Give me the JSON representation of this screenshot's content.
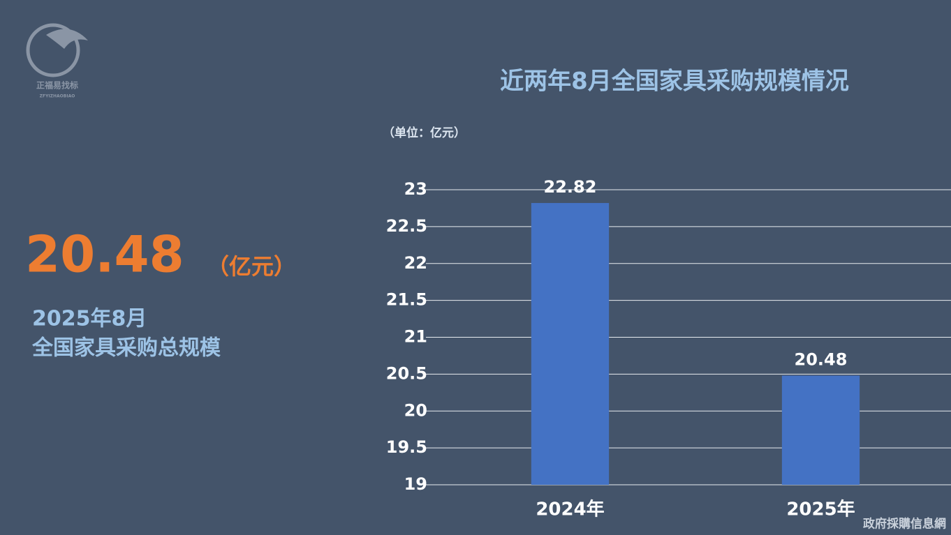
{
  "logo": {
    "name": "正福易找标",
    "pinyin": "ZFYIZHAOBIAO"
  },
  "highlight": {
    "value": 20.48,
    "unit": "（亿元）",
    "period": "2025年8月",
    "caption": "全国家具采购总规模"
  },
  "watermark": "政府採購信息網",
  "chart_data": {
    "type": "bar",
    "title": "近两年8月全国家具采购规模情况",
    "unit_label": "（单位：亿元）",
    "categories": [
      "2024年",
      "2025年"
    ],
    "values": [
      22.82,
      20.48
    ],
    "color": "#4472c4",
    "ylim": [
      19,
      23
    ],
    "yticks": [
      19,
      19.5,
      20,
      20.5,
      21,
      21.5,
      22,
      22.5,
      23
    ],
    "grid": true
  }
}
